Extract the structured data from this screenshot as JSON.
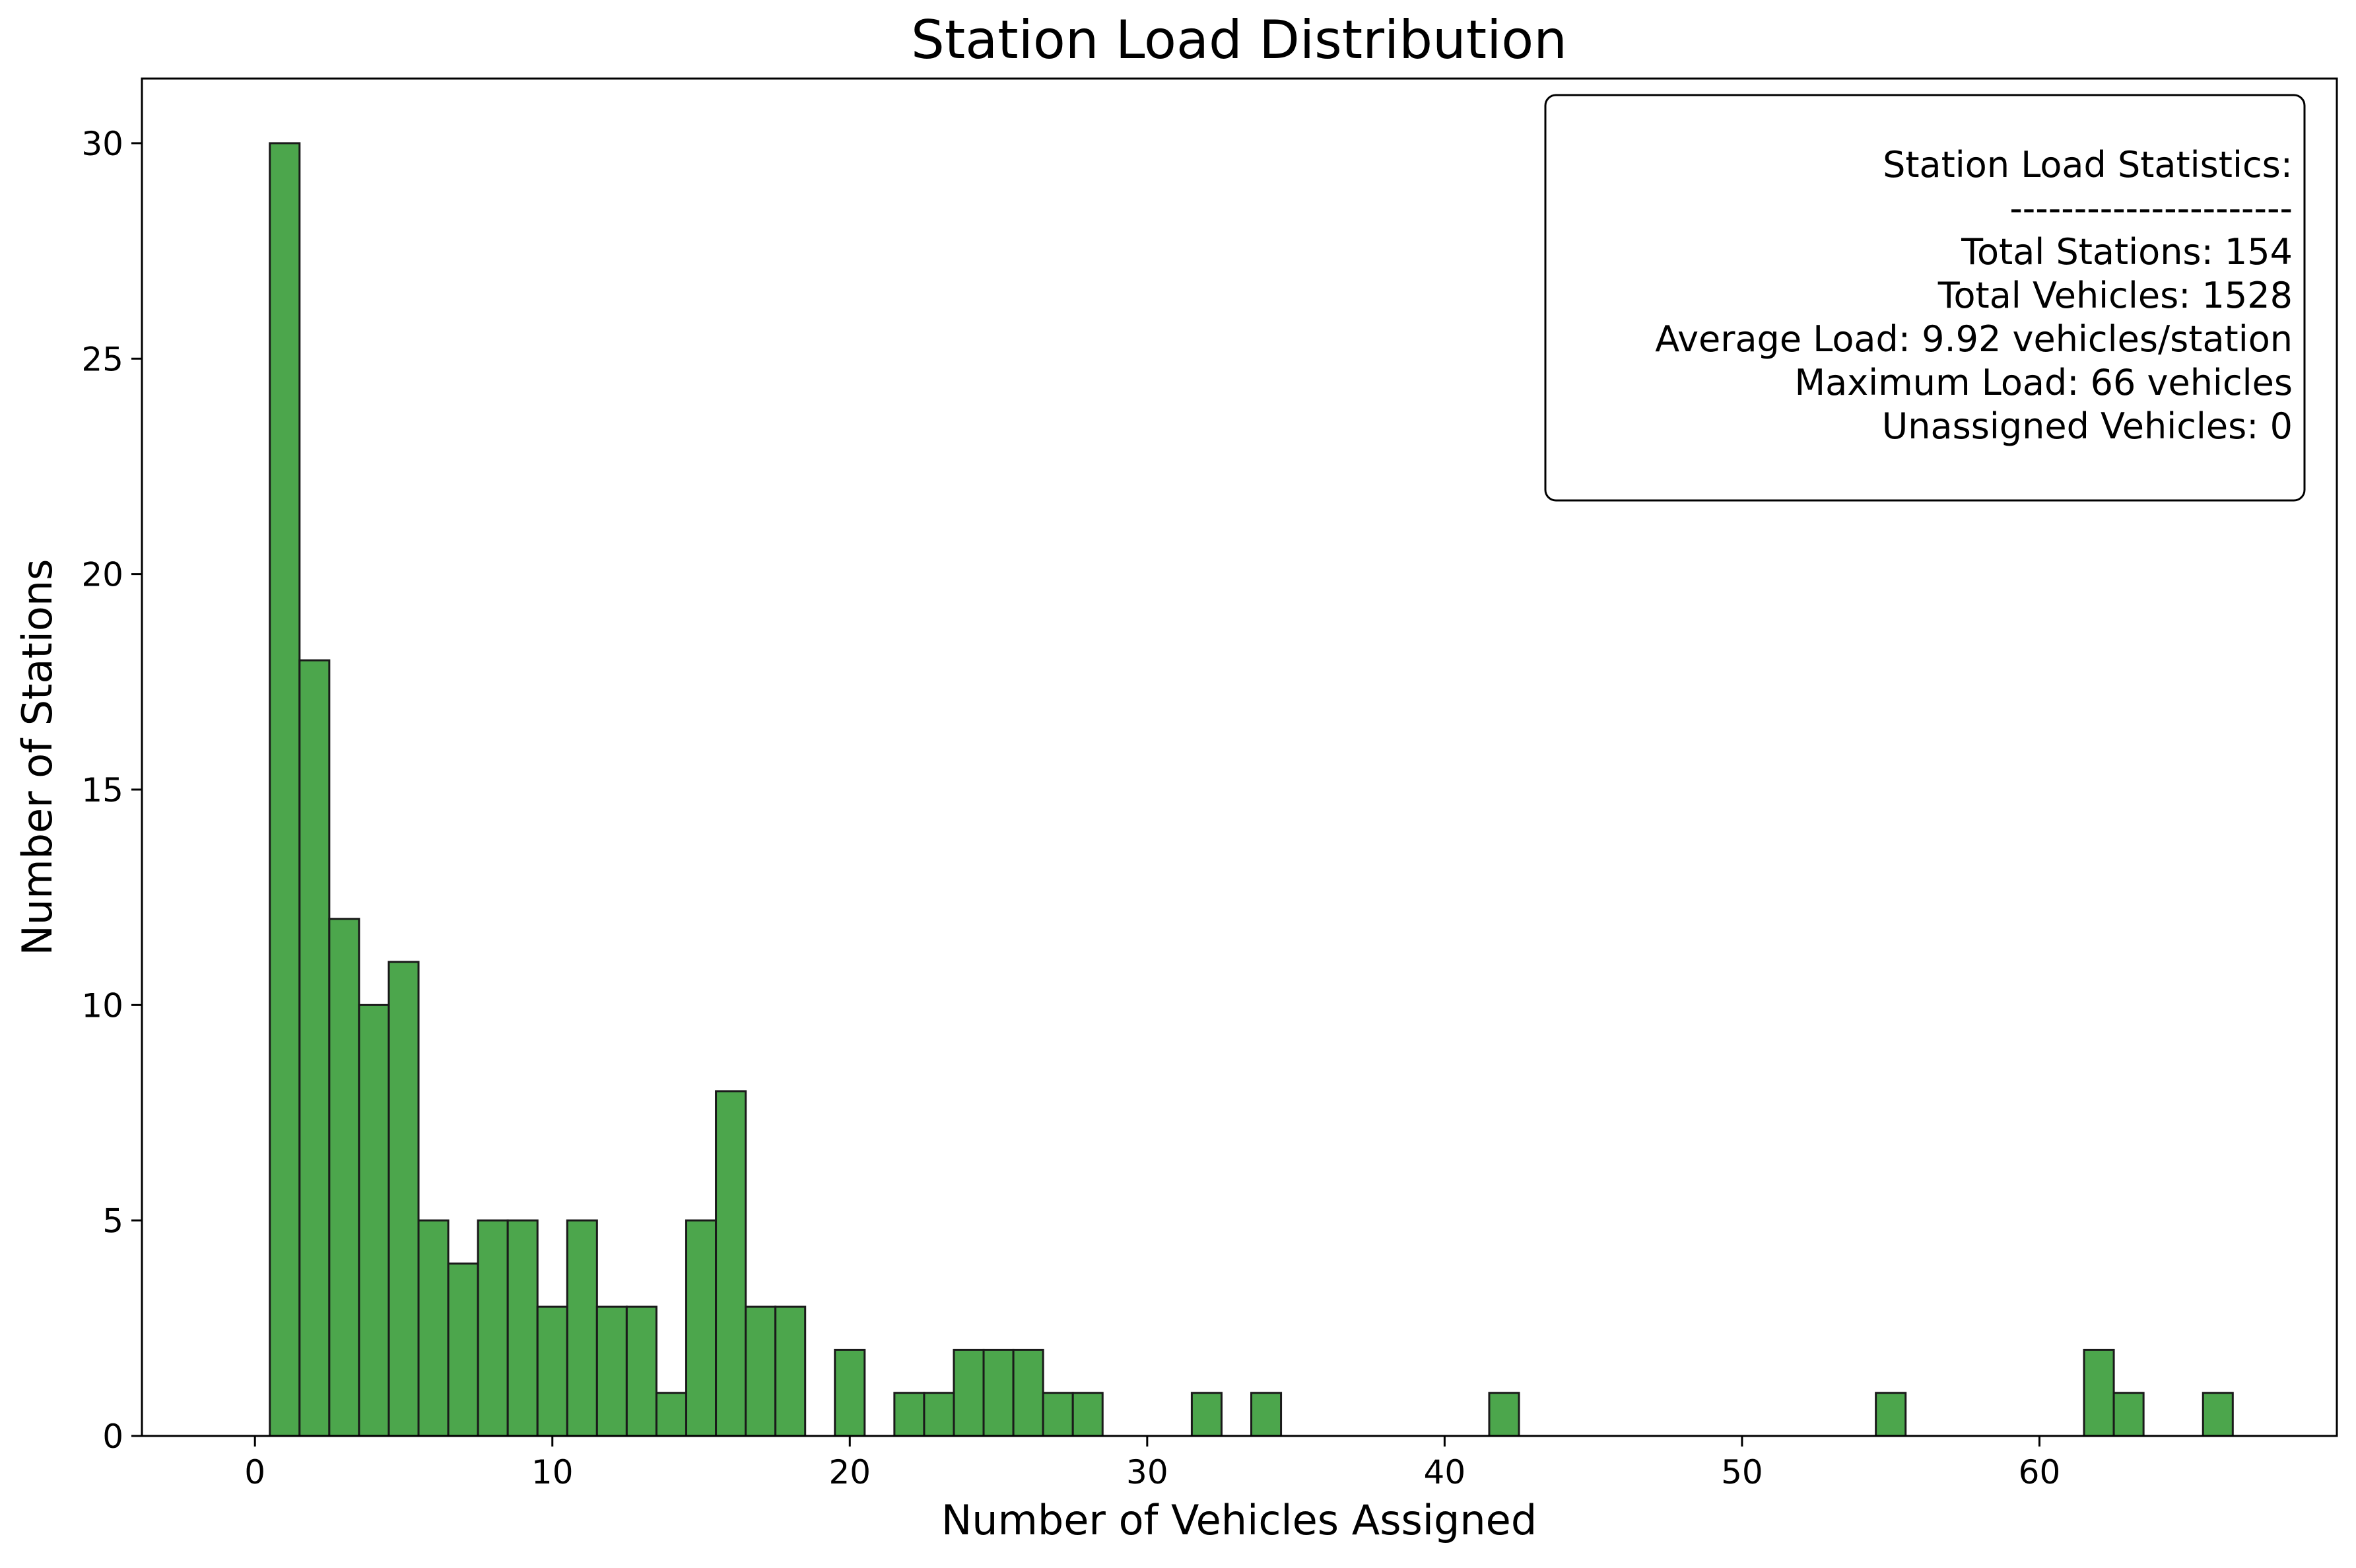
{
  "chart_data": {
    "type": "bar",
    "title": "Station Load Distribution",
    "xlabel": "Number of Vehicles Assigned",
    "ylabel": "Number of Stations",
    "xlim": [
      -3.8,
      70.0
    ],
    "ylim": [
      0,
      31.5
    ],
    "xticks": [
      0,
      10,
      20,
      30,
      40,
      50,
      60
    ],
    "yticks": [
      0,
      5,
      10,
      15,
      20,
      25,
      30
    ],
    "bin_width": 1,
    "bins": [
      {
        "x": 1,
        "count": 30
      },
      {
        "x": 2,
        "count": 18
      },
      {
        "x": 3,
        "count": 12
      },
      {
        "x": 4,
        "count": 10
      },
      {
        "x": 5,
        "count": 11
      },
      {
        "x": 6,
        "count": 5
      },
      {
        "x": 7,
        "count": 4
      },
      {
        "x": 8,
        "count": 5
      },
      {
        "x": 9,
        "count": 5
      },
      {
        "x": 10,
        "count": 3
      },
      {
        "x": 11,
        "count": 5
      },
      {
        "x": 12,
        "count": 3
      },
      {
        "x": 13,
        "count": 3
      },
      {
        "x": 14,
        "count": 1
      },
      {
        "x": 15,
        "count": 5
      },
      {
        "x": 16,
        "count": 8
      },
      {
        "x": 17,
        "count": 3
      },
      {
        "x": 18,
        "count": 3
      },
      {
        "x": 20,
        "count": 2
      },
      {
        "x": 22,
        "count": 1
      },
      {
        "x": 23,
        "count": 1
      },
      {
        "x": 24,
        "count": 2
      },
      {
        "x": 25,
        "count": 2
      },
      {
        "x": 26,
        "count": 2
      },
      {
        "x": 27,
        "count": 1
      },
      {
        "x": 28,
        "count": 1
      },
      {
        "x": 32,
        "count": 1
      },
      {
        "x": 34,
        "count": 1
      },
      {
        "x": 42,
        "count": 1
      },
      {
        "x": 55,
        "count": 1
      },
      {
        "x": 62,
        "count": 2
      },
      {
        "x": 63,
        "count": 1
      },
      {
        "x": 66,
        "count": 1
      }
    ],
    "bar_color": "#4ca64c",
    "edge_color": "#1a1a1a",
    "grid": false,
    "stats_box": {
      "placement": "top-right",
      "lines": [
        "Station Load Statistics:",
        "----------------------",
        "Total Stations: 154",
        "Total Vehicles: 1528",
        "Average Load: 9.92 vehicles/station",
        "Maximum Load: 66 vehicles",
        "Unassigned Vehicles: 0"
      ]
    }
  }
}
